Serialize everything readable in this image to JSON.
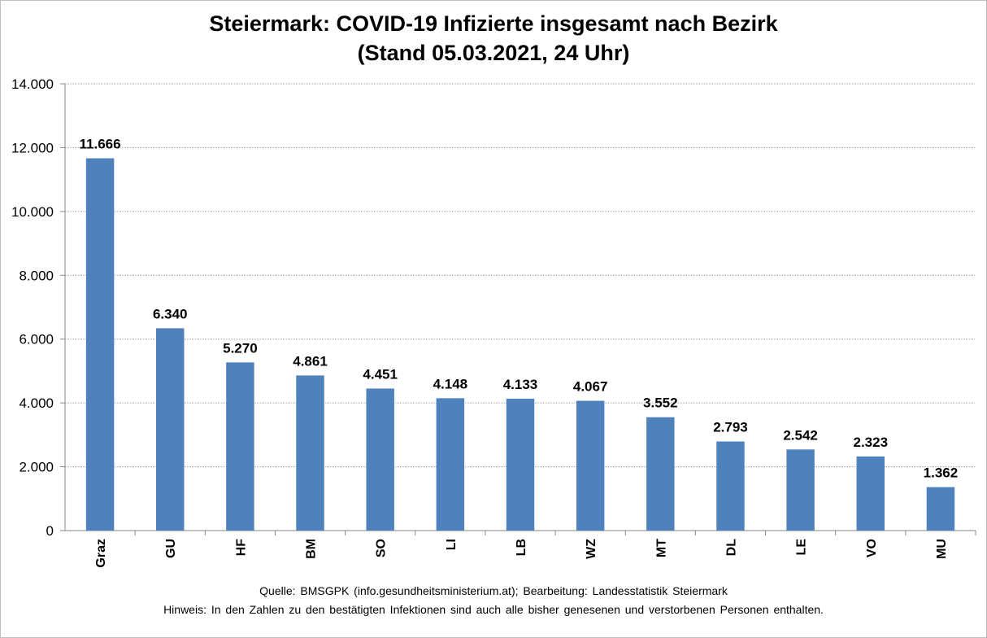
{
  "chart_data": {
    "type": "bar",
    "title_line1": "Steiermark: COVID-19 Infizierte insgesamt nach Bezirk",
    "title_line2": "(Stand 05.03.2021, 24 Uhr)",
    "categories": [
      "Graz",
      "GU",
      "HF",
      "BM",
      "SO",
      "LI",
      "LB",
      "WZ",
      "MT",
      "DL",
      "LE",
      "VO",
      "MU"
    ],
    "values": [
      11666,
      6340,
      5270,
      4861,
      4451,
      4148,
      4133,
      4067,
      3552,
      2793,
      2542,
      2323,
      1362
    ],
    "value_labels": [
      "11.666",
      "6.340",
      "5.270",
      "4.861",
      "4.451",
      "4.148",
      "4.133",
      "4.067",
      "3.552",
      "2.793",
      "2.542",
      "2.323",
      "1.362"
    ],
    "yticks": [
      0,
      2000,
      4000,
      6000,
      8000,
      10000,
      12000,
      14000
    ],
    "ytick_labels": [
      "0",
      "2.000",
      "4.000",
      "6.000",
      "8.000",
      "10.000",
      "12.000",
      "14.000"
    ],
    "ylim": [
      0,
      14000
    ],
    "xlabel": "",
    "ylabel": "",
    "grid": true,
    "bar_color": "#4f81bd",
    "grid_color": "#a6a6a6"
  },
  "footer": {
    "source": "Quelle: BMSGPK (info.gesundheitsministerium.at); Bearbeitung: Landesstatistik Steiermark",
    "note": "Hinweis: In den Zahlen zu den bestätigten Infektionen sind auch alle bisher genesenen und verstorbenen Personen enthalten."
  }
}
